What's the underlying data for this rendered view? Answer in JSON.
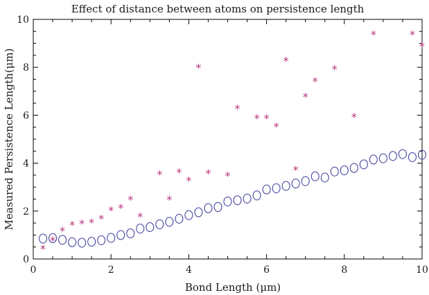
{
  "chart_data": {
    "type": "scatter",
    "title": "Effect of distance between atoms on persistence length",
    "xlabel": "Bond Length (μm)",
    "ylabel": "Measured Persistence Length(μm)",
    "xlim": [
      0,
      10
    ],
    "ylim": [
      0,
      10
    ],
    "xticks": [
      0,
      2,
      4,
      6,
      8,
      10
    ],
    "yticks": [
      0,
      2,
      4,
      6,
      8,
      10
    ],
    "grid": false,
    "legend": "none",
    "series": [
      {
        "marker": "circle",
        "color": "#3b3b9a",
        "x": [
          0.25,
          0.5,
          0.75,
          1.0,
          1.25,
          1.5,
          1.75,
          2.0,
          2.25,
          2.5,
          2.75,
          3.0,
          3.25,
          3.5,
          3.75,
          4.0,
          4.25,
          4.5,
          4.75,
          5.0,
          5.25,
          5.5,
          5.75,
          6.0,
          6.25,
          6.5,
          6.75,
          7.0,
          7.25,
          7.5,
          7.75,
          8.0,
          8.25,
          8.5,
          8.75,
          9.0,
          9.25,
          9.5,
          9.75,
          10.0
        ],
        "y": [
          0.85,
          0.87,
          0.8,
          0.7,
          0.68,
          0.72,
          0.78,
          0.88,
          1.0,
          1.07,
          1.27,
          1.33,
          1.45,
          1.55,
          1.68,
          1.83,
          1.95,
          2.12,
          2.17,
          2.4,
          2.45,
          2.52,
          2.65,
          2.9,
          2.95,
          3.05,
          3.15,
          3.25,
          3.45,
          3.4,
          3.65,
          3.7,
          3.8,
          3.95,
          4.15,
          4.2,
          4.3,
          4.38,
          4.25,
          4.35
        ]
      },
      {
        "marker": "asterisk",
        "color": "#b8337a",
        "x": [
          0.25,
          0.5,
          0.75,
          1.0,
          1.25,
          1.5,
          1.75,
          2.0,
          2.25,
          2.5,
          2.75,
          3.25,
          3.5,
          3.75,
          4.0,
          4.25,
          4.5,
          5.0,
          5.25,
          5.75,
          6.0,
          6.25,
          6.5,
          6.75,
          7.0,
          7.25,
          7.75,
          8.25,
          8.75,
          9.75,
          10.0
        ],
        "y": [
          0.55,
          0.9,
          1.3,
          1.55,
          1.6,
          1.65,
          1.8,
          2.15,
          2.25,
          2.6,
          1.9,
          3.65,
          2.6,
          3.75,
          3.4,
          8.1,
          3.7,
          3.6,
          6.4,
          6.0,
          6.0,
          5.65,
          8.4,
          3.85,
          6.9,
          7.55,
          8.05,
          6.05,
          9.5,
          9.5,
          9.0
        ]
      }
    ]
  }
}
